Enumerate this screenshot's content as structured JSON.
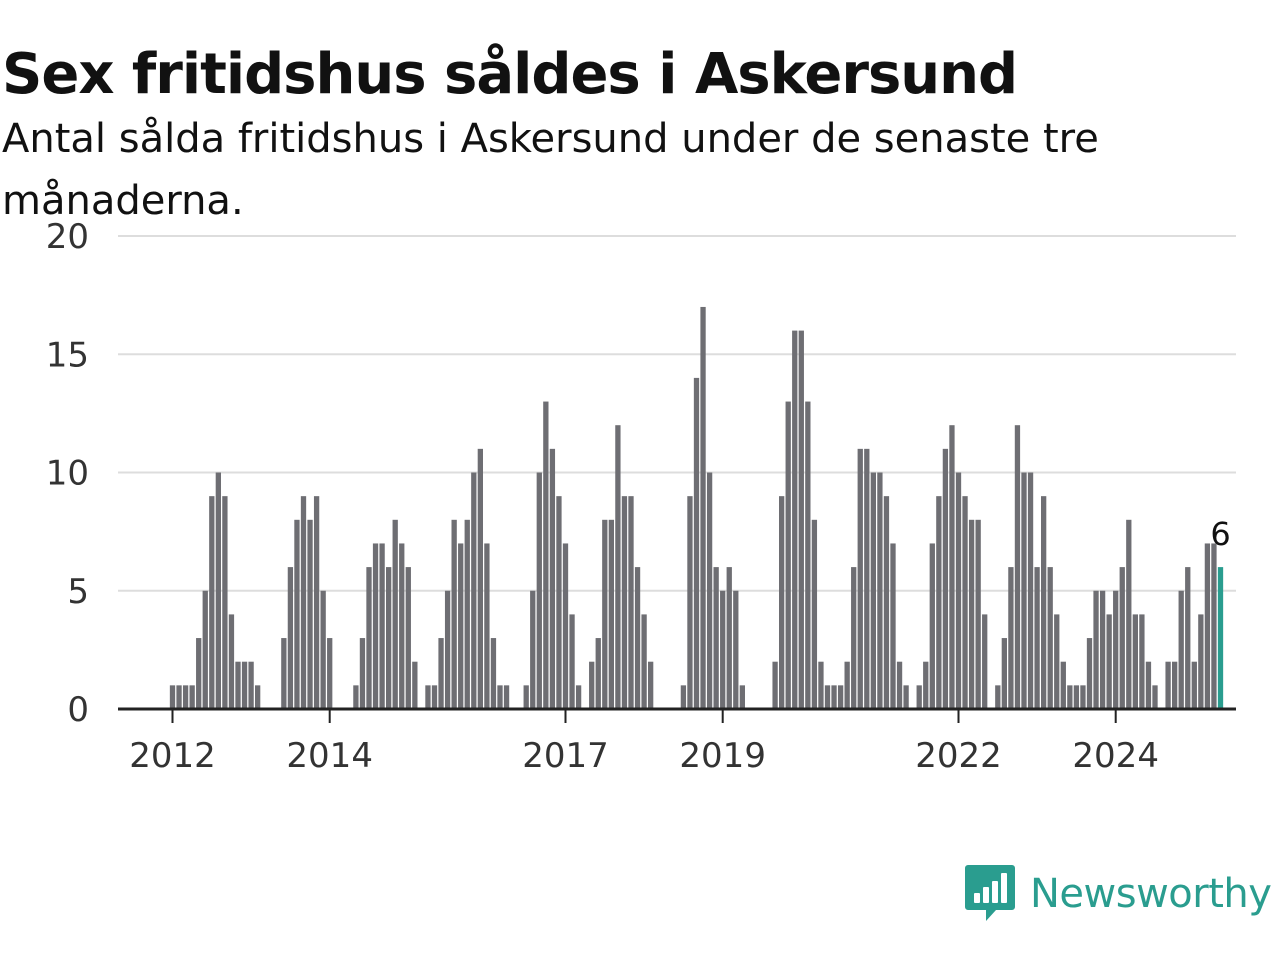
{
  "colors": {
    "bar": "#6e6e73",
    "highlight": "#2a9d8f",
    "grid": "#dddddd",
    "axis": "#333333",
    "brand": "#2a9d8f"
  },
  "brand": {
    "name": "Newsworthy",
    "icon": "bar-chart-speech-bubble-icon"
  },
  "chart_data": {
    "type": "bar",
    "title": "Sex fritidshus såldes i Askersund",
    "subtitle": "Antal sålda fritidshus i Askersund under de senaste tre månaderna.",
    "xlabel": "",
    "ylabel": "",
    "ylim": [
      0,
      20
    ],
    "yticks": [
      0,
      5,
      10,
      15,
      20
    ],
    "xticks": [
      "2012",
      "2014",
      "2017",
      "2019",
      "2022",
      "2024"
    ],
    "grid": true,
    "legend": "none",
    "start": "2011-05",
    "frequency": "monthly",
    "values": [
      0,
      0,
      0,
      0,
      0,
      0,
      0,
      0,
      1,
      1,
      1,
      1,
      3,
      5,
      9,
      10,
      9,
      4,
      2,
      2,
      2,
      1,
      0,
      0,
      0,
      3,
      6,
      8,
      9,
      8,
      9,
      5,
      3,
      0,
      0,
      0,
      1,
      3,
      6,
      7,
      7,
      6,
      8,
      7,
      6,
      2,
      0,
      1,
      1,
      3,
      5,
      8,
      7,
      8,
      10,
      11,
      7,
      3,
      1,
      1,
      0,
      0,
      1,
      5,
      10,
      13,
      11,
      9,
      7,
      4,
      1,
      0,
      2,
      3,
      8,
      8,
      12,
      9,
      9,
      6,
      4,
      2,
      0,
      0,
      0,
      0,
      1,
      9,
      14,
      17,
      10,
      6,
      5,
      6,
      5,
      1,
      0,
      0,
      0,
      0,
      2,
      9,
      13,
      16,
      16,
      13,
      8,
      2,
      1,
      1,
      1,
      2,
      6,
      11,
      11,
      10,
      10,
      9,
      7,
      2,
      1,
      0,
      1,
      2,
      7,
      9,
      11,
      12,
      10,
      9,
      8,
      8,
      4,
      0,
      1,
      3,
      6,
      12,
      10,
      10,
      6,
      9,
      6,
      4,
      2,
      1,
      1,
      1,
      3,
      5,
      5,
      4,
      5,
      6,
      8,
      4,
      4,
      2,
      1,
      0,
      2,
      2,
      5,
      6,
      2,
      4,
      7,
      7,
      6
    ],
    "highlight_last": true,
    "last_value_label": "6"
  }
}
